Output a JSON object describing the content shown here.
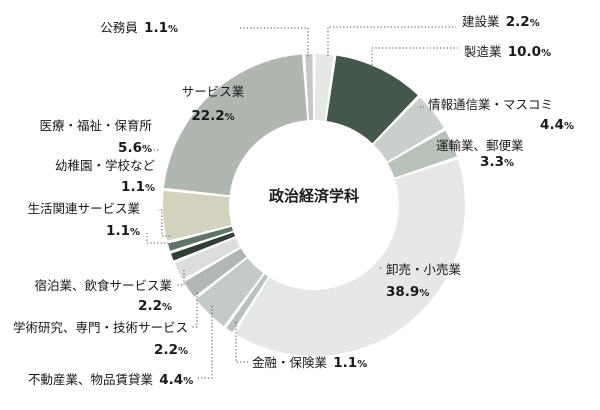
{
  "chart_data": {
    "type": "donut",
    "title": "政治経済学科",
    "start": "top, clockwise",
    "slices": [
      {
        "name": "建設業",
        "value": 2.2,
        "display": "2.2",
        "color": "#e6e8e5"
      },
      {
        "name": "製造業",
        "value": 10.0,
        "display": "10.0",
        "color": "#44574b"
      },
      {
        "name": "情報通信業・マスコミ",
        "value": 4.4,
        "display": "4.4",
        "color": "#c9d0cb"
      },
      {
        "name": "運輸業、郵便業",
        "value": 3.3,
        "display": "3.3",
        "color": "#b6c2ba"
      },
      {
        "name": "卸売・小売業",
        "value": 38.9,
        "display": "38.9",
        "color": "#e5e8e4"
      },
      {
        "name": "金融・保険業",
        "value": 1.1,
        "display": "1.1",
        "color": "#b9c3bc"
      },
      {
        "name": "不動産業、物品賃貸業",
        "value": 4.4,
        "display": "4.4",
        "color": "#c4cac5"
      },
      {
        "name": "学術研究、専門・技術サービス",
        "value": 2.2,
        "display": "2.2",
        "color": "#b1b8b3"
      },
      {
        "name": "宿泊業、飲食サービス業",
        "value": 2.2,
        "display": "2.2",
        "color": "#dcdedc"
      },
      {
        "name": "生活関連サービス業",
        "value": 1.1,
        "display": "1.1",
        "color": "#2f3f36"
      },
      {
        "name": "幼稚園・学校など",
        "value": 1.1,
        "display": "1.1",
        "color": "#5f7568"
      },
      {
        "name": "医療・福祉・保育所",
        "value": 5.6,
        "display": "5.6",
        "color": "#d3d2bf"
      },
      {
        "name": "サービス業",
        "value": 22.2,
        "display": "22.2",
        "color": "#b0b7b1"
      },
      {
        "name": "公務員",
        "value": 1.1,
        "display": "1.1",
        "color": "#c5c8c5"
      }
    ],
    "percent_symbol": "%"
  }
}
